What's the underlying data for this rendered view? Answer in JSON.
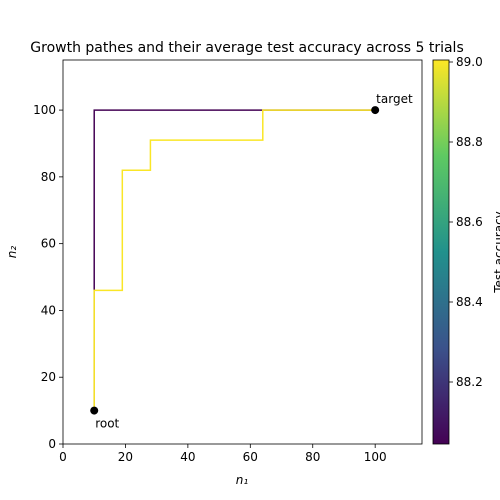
{
  "chart_data": {
    "type": "line",
    "title": "Growth pathes and their average test accuracy across 5 trials",
    "xlabel": "n₁",
    "ylabel": "n₂",
    "xlim": [
      0,
      115
    ],
    "xticks": [
      0,
      20,
      40,
      60,
      80,
      100
    ],
    "ylim": [
      0,
      115
    ],
    "yticks": [
      0,
      20,
      40,
      60,
      80,
      100
    ],
    "colorbar": {
      "label": "Test accuracy",
      "clim": [
        88.045,
        89.005
      ],
      "ticks": [
        88.2,
        88.4,
        88.6,
        88.8,
        {
          "value": 89,
          "label": "89.0"
        }
      ],
      "colormap": [
        "#440154",
        "#3b528b",
        "#21918c",
        "#5ec962",
        "#fde725"
      ]
    },
    "series": [
      {
        "accuracy": 88.05,
        "x": [
          10,
          10,
          100
        ],
        "values": [
          10,
          100,
          100
        ]
      },
      {
        "accuracy": 89.0,
        "x": [
          10,
          10,
          19,
          19,
          28,
          28,
          64,
          64,
          100
        ],
        "values": [
          10,
          46,
          46,
          82,
          82,
          91,
          91,
          100,
          100
        ]
      }
    ],
    "points": [
      {
        "label": "root",
        "x": 10,
        "y": 10,
        "color": "#000000"
      },
      {
        "label": "target",
        "x": 100,
        "y": 100,
        "color": "#000000"
      }
    ]
  }
}
